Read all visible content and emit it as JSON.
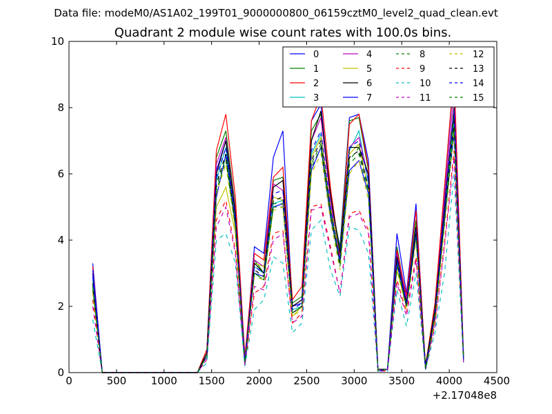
{
  "header": {
    "data_file": "Data file: modeM0/AS1A02_199T01_9000000800_06159cztM0_level2_quad_clean.evt"
  },
  "chart_data": {
    "type": "line",
    "title": "Quadrant 2 module wise count rates with 100.0s bins.",
    "xlabel": "",
    "ylabel": "",
    "x_offset_label": "+2.17048e8",
    "xlim": [
      0,
      4500
    ],
    "ylim": [
      0,
      10
    ],
    "x_ticks": [
      0,
      500,
      1000,
      1500,
      2000,
      2500,
      3000,
      3500,
      4000,
      4500
    ],
    "y_ticks": [
      0,
      2,
      4,
      6,
      8,
      10
    ],
    "legend_location": "top-right",
    "legend_columns": 4,
    "x": [
      250,
      350,
      450,
      550,
      650,
      750,
      850,
      950,
      1050,
      1150,
      1250,
      1350,
      1450,
      1550,
      1650,
      1750,
      1850,
      1950,
      2050,
      2150,
      2250,
      2350,
      2450,
      2550,
      2650,
      2750,
      2850,
      2950,
      3050,
      3150,
      3250,
      3350,
      3450,
      3550,
      3650,
      3750,
      3850,
      3950,
      4050,
      4150
    ],
    "series": [
      {
        "name": "0",
        "color": "#0000ff",
        "dash": "solid",
        "values": [
          3.3,
          0,
          0,
          0,
          0,
          0,
          0,
          0,
          0,
          0,
          0,
          0,
          0.5,
          6.1,
          7.0,
          4.7,
          0.3,
          3.8,
          3.6,
          6.5,
          7.3,
          2.0,
          2.1,
          7.6,
          8.1,
          5.2,
          3.8,
          7.7,
          7.8,
          6.4,
          0.05,
          0.1,
          4.2,
          2.4,
          5.1,
          0.1,
          2.0,
          5.5,
          9.0,
          0.4
        ]
      },
      {
        "name": "1",
        "color": "#008000",
        "dash": "solid",
        "values": [
          3.0,
          0,
          0,
          0,
          0,
          0,
          0,
          0,
          0,
          0,
          0,
          0,
          0.6,
          6.5,
          7.3,
          5.0,
          0.4,
          3.4,
          3.0,
          5.8,
          5.9,
          2.1,
          2.3,
          7.3,
          7.8,
          5.4,
          3.7,
          7.6,
          7.7,
          6.1,
          0.1,
          0.1,
          3.8,
          2.2,
          4.6,
          0.2,
          1.9,
          5.0,
          7.8,
          0.5
        ]
      },
      {
        "name": "2",
        "color": "#ff0000",
        "dash": "solid",
        "values": [
          3.2,
          0,
          0,
          0,
          0,
          0,
          0,
          0,
          0,
          0,
          0,
          0,
          0.7,
          6.7,
          7.8,
          5.3,
          0.5,
          3.6,
          3.4,
          5.9,
          6.2,
          2.2,
          2.6,
          7.6,
          8.4,
          5.6,
          3.5,
          7.5,
          7.8,
          6.2,
          0.1,
          0.1,
          3.7,
          2.3,
          4.9,
          0.2,
          2.1,
          5.6,
          9.1,
          0.5
        ]
      },
      {
        "name": "3",
        "color": "#00bfbf",
        "dash": "solid",
        "values": [
          2.8,
          0,
          0,
          0,
          0,
          0,
          0,
          0,
          0,
          0,
          0,
          0,
          0.5,
          5.8,
          6.8,
          4.6,
          0.3,
          3.2,
          3.0,
          5.1,
          5.2,
          1.9,
          2.0,
          6.6,
          7.2,
          4.9,
          3.3,
          6.7,
          7.3,
          5.7,
          0.05,
          0.1,
          3.4,
          2.1,
          4.2,
          0.1,
          1.8,
          4.8,
          7.6,
          0.4
        ]
      },
      {
        "name": "4",
        "color": "#bf00bf",
        "dash": "solid",
        "values": [
          3.0,
          0,
          0,
          0,
          0,
          0,
          0,
          0,
          0,
          0,
          0,
          0,
          0.6,
          6.3,
          7.1,
          4.9,
          0.4,
          3.4,
          3.2,
          5.7,
          5.5,
          2.0,
          2.2,
          7.0,
          7.7,
          5.2,
          3.4,
          6.8,
          7.1,
          5.9,
          0.1,
          0.1,
          3.6,
          2.2,
          4.4,
          0.1,
          1.9,
          5.2,
          8.5,
          0.4
        ]
      },
      {
        "name": "5",
        "color": "#bfbf00",
        "dash": "solid",
        "values": [
          2.6,
          0,
          0,
          0,
          0,
          0,
          0,
          0,
          0,
          0,
          0,
          0,
          0.5,
          5.0,
          5.6,
          4.2,
          0.3,
          3.3,
          3.2,
          5.3,
          5.2,
          1.7,
          2.0,
          6.5,
          7.1,
          5.0,
          3.6,
          6.6,
          6.9,
          5.5,
          0.05,
          0.1,
          3.1,
          2.0,
          4.1,
          0.1,
          1.7,
          4.6,
          7.4,
          0.4
        ]
      },
      {
        "name": "6",
        "color": "#000000",
        "dash": "solid",
        "values": [
          3.0,
          0,
          0,
          0,
          0,
          0,
          0,
          0,
          0,
          0,
          0,
          0,
          0.6,
          6.0,
          7.0,
          4.8,
          0.3,
          3.3,
          3.0,
          5.6,
          5.8,
          2.0,
          2.2,
          7.0,
          7.9,
          5.4,
          3.6,
          6.8,
          6.8,
          6.0,
          0.1,
          0.1,
          3.5,
          2.1,
          4.4,
          0.2,
          1.9,
          5.0,
          8.0,
          0.4
        ]
      },
      {
        "name": "7",
        "color": "#0000ff",
        "dash": "solid",
        "values": [
          3.1,
          0,
          0,
          0,
          0,
          0,
          0,
          0,
          0,
          0,
          0,
          0,
          0.5,
          5.3,
          6.6,
          4.5,
          0.3,
          3.0,
          2.9,
          5.0,
          5.1,
          1.8,
          2.0,
          6.1,
          6.8,
          4.7,
          3.3,
          6.1,
          6.4,
          5.4,
          0.05,
          0.1,
          3.3,
          2.0,
          4.2,
          0.1,
          1.7,
          4.7,
          7.2,
          0.4
        ]
      },
      {
        "name": "8",
        "color": "#008000",
        "dash": "dashed",
        "values": [
          2.5,
          0,
          0,
          0,
          0,
          0,
          0,
          0,
          0,
          0,
          0,
          0,
          0.5,
          5.6,
          6.5,
          4.4,
          0.3,
          3.0,
          2.8,
          5.0,
          5.0,
          1.8,
          2.0,
          6.3,
          6.9,
          4.8,
          3.3,
          6.4,
          6.8,
          5.5,
          0.05,
          0.1,
          3.3,
          2.0,
          4.2,
          0.1,
          1.7,
          4.6,
          7.5,
          0.4
        ]
      },
      {
        "name": "9",
        "color": "#ff0000",
        "dash": "dashed",
        "values": [
          2.2,
          0,
          0,
          0,
          0,
          0,
          0,
          0,
          0,
          0,
          0,
          0,
          0.4,
          4.6,
          5.2,
          3.7,
          0.2,
          2.4,
          2.6,
          4.2,
          4.3,
          1.5,
          1.8,
          5.0,
          5.1,
          3.8,
          2.4,
          4.8,
          4.9,
          4.3,
          0.05,
          0.05,
          2.8,
          1.8,
          3.5,
          0.1,
          1.5,
          3.9,
          6.7,
          0.3
        ]
      },
      {
        "name": "10",
        "color": "#00bfbf",
        "dash": "dashed",
        "values": [
          1.6,
          0,
          0,
          0,
          0,
          0,
          0,
          0,
          0,
          0,
          0,
          0,
          0.3,
          4.0,
          4.2,
          3.3,
          0.2,
          1.9,
          2.2,
          3.5,
          3.3,
          1.2,
          1.5,
          4.3,
          4.6,
          3.1,
          2.3,
          4.4,
          4.3,
          3.6,
          0.05,
          0.05,
          2.5,
          1.4,
          3.0,
          0.1,
          1.2,
          3.0,
          6.0,
          0.3
        ]
      },
      {
        "name": "11",
        "color": "#bf00bf",
        "dash": "dashed",
        "values": [
          2.0,
          0,
          0,
          0,
          0,
          0,
          0,
          0,
          0,
          0,
          0,
          0,
          0.4,
          4.4,
          5.0,
          3.6,
          0.2,
          2.6,
          2.5,
          4.0,
          4.2,
          1.5,
          1.7,
          4.9,
          5.0,
          3.7,
          2.4,
          4.7,
          4.8,
          4.2,
          0.05,
          0.05,
          2.7,
          1.7,
          3.4,
          0.1,
          1.4,
          3.8,
          6.5,
          0.3
        ]
      },
      {
        "name": "12",
        "color": "#bfbf00",
        "dash": "dashed",
        "values": [
          2.4,
          0,
          0,
          0,
          0,
          0,
          0,
          0,
          0,
          0,
          0,
          0,
          0.5,
          5.4,
          6.3,
          4.3,
          0.3,
          2.9,
          2.8,
          4.9,
          5.0,
          1.7,
          1.9,
          6.0,
          6.6,
          4.6,
          3.1,
          6.0,
          6.4,
          5.2,
          0.05,
          0.1,
          3.1,
          1.9,
          4.0,
          0.1,
          1.6,
          4.4,
          7.3,
          0.4
        ]
      },
      {
        "name": "13",
        "color": "#000000",
        "dash": "dashed",
        "values": [
          2.7,
          0,
          0,
          0,
          0,
          0,
          0,
          0,
          0,
          0,
          0,
          0,
          0.5,
          5.7,
          6.6,
          4.5,
          0.3,
          3.1,
          2.9,
          5.2,
          5.3,
          1.8,
          2.0,
          6.4,
          7.0,
          4.9,
          3.3,
          6.5,
          6.7,
          5.6,
          0.05,
          0.1,
          3.3,
          2.0,
          4.2,
          0.1,
          1.7,
          4.7,
          7.6,
          0.4
        ]
      },
      {
        "name": "14",
        "color": "#0000ff",
        "dash": "dashed",
        "values": [
          2.9,
          0,
          0,
          0,
          0,
          0,
          0,
          0,
          0,
          0,
          0,
          0,
          0.5,
          5.9,
          6.8,
          4.6,
          0.3,
          3.2,
          3.0,
          5.4,
          5.5,
          1.9,
          2.1,
          6.7,
          7.3,
          5.0,
          3.4,
          6.8,
          7.0,
          5.8,
          0.05,
          0.1,
          3.4,
          2.1,
          4.3,
          0.1,
          1.8,
          4.9,
          7.9,
          0.4
        ]
      },
      {
        "name": "15",
        "color": "#008000",
        "dash": "dashed",
        "values": [
          2.6,
          0,
          0,
          0,
          0,
          0,
          0,
          0,
          0,
          0,
          0,
          0,
          0.5,
          5.5,
          6.4,
          4.4,
          0.3,
          3.0,
          2.8,
          5.1,
          5.1,
          1.8,
          2.0,
          6.2,
          6.8,
          4.8,
          3.2,
          6.3,
          6.6,
          5.4,
          0.05,
          0.1,
          3.2,
          2.0,
          4.1,
          0.1,
          1.7,
          4.5,
          7.4,
          0.4
        ]
      }
    ]
  }
}
